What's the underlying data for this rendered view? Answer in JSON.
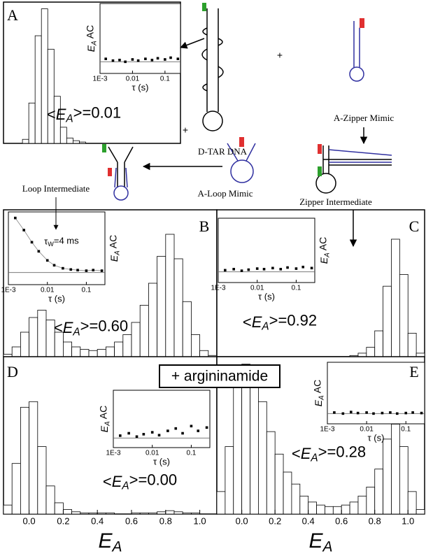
{
  "diagram": {
    "d_tar": "D-TAR DNA",
    "zipper_mimic": "A-Zipper Mimic",
    "loop_mimic": "A-Loop Mimic",
    "loop_intermediate": "Loop Intermediate",
    "zipper_intermediate": "Zipper Intermediate",
    "plus_1": "+",
    "plus_2": "+",
    "argininamide": "+ argininamide"
  },
  "chart_data": [
    {
      "type": "histogram",
      "panel": "A",
      "color": "#ffffff",
      "mean_label": "<EA>=0.01",
      "bins": [
        -0.15,
        -0.1,
        -0.05,
        0,
        0.05,
        0.1,
        0.15,
        0.2,
        0.25,
        0.3,
        0.35,
        0.4,
        0.45,
        0.5,
        0.55,
        0.6,
        0.65,
        0.7,
        0.75,
        0.8,
        0.85,
        0.9,
        0.95,
        1,
        1.05,
        1.1
      ],
      "values": [
        3,
        30,
        80,
        100,
        70,
        35,
        12,
        4,
        2,
        1,
        0,
        0,
        0,
        0,
        0,
        0,
        0,
        0,
        0,
        0,
        0,
        0,
        0,
        0,
        0
      ],
      "xlim": [
        -0.3,
        1.1
      ],
      "ylim": [
        0,
        105
      ],
      "inset": {
        "type": "scatter",
        "xlabel": "τ (s)",
        "ylabel": "EA AC",
        "log_x": true,
        "x": [
          0.0015,
          0.0025,
          0.004,
          0.006,
          0.01,
          0.015,
          0.025,
          0.04,
          0.06,
          0.1,
          0.15,
          0.25
        ],
        "y": [
          0.05,
          0.02,
          0.03,
          0.0,
          0.04,
          0.02,
          0.05,
          0.03,
          0.06,
          0.04,
          0.07,
          0.05
        ],
        "xlim": [
          0.001,
          0.3
        ],
        "ylim": [
          -0.2,
          1
        ],
        "xticks": [
          {
            "value": 0.001,
            "label": "1E-3"
          },
          0.01,
          0.1
        ]
      }
    },
    {
      "type": "histogram",
      "panel": "B",
      "color": "#ffffff",
      "mean_label": "<EA>=0.60",
      "bins": [
        -0.15,
        -0.1,
        -0.05,
        0,
        0.05,
        0.1,
        0.15,
        0.2,
        0.25,
        0.3,
        0.35,
        0.4,
        0.45,
        0.5,
        0.55,
        0.6,
        0.65,
        0.7,
        0.75,
        0.8,
        0.85,
        0.9,
        0.95,
        1,
        1.05,
        1.1
      ],
      "values": [
        2,
        8,
        20,
        32,
        38,
        30,
        20,
        12,
        8,
        6,
        5,
        6,
        8,
        12,
        18,
        28,
        42,
        60,
        82,
        100,
        80,
        45,
        18,
        5,
        1
      ],
      "xlim": [
        -0.15,
        1.1
      ],
      "ylim": [
        0,
        120
      ],
      "inset": {
        "type": "scatter",
        "xlabel": "τ (s)",
        "ylabel": "EA AC",
        "log_x": true,
        "annotation": "τW=4 ms",
        "x": [
          0.0015,
          0.0025,
          0.004,
          0.006,
          0.01,
          0.015,
          0.025,
          0.04,
          0.06,
          0.1,
          0.15,
          0.25
        ],
        "y": [
          0.9,
          0.7,
          0.5,
          0.35,
          0.2,
          0.12,
          0.07,
          0.05,
          0.04,
          0.03,
          0.04,
          0.03
        ],
        "xlim": [
          0.001,
          0.3
        ],
        "ylim": [
          -0.2,
          1
        ],
        "xticks": [
          {
            "value": 0.001,
            "label": "1E-3"
          },
          0.01,
          0.1
        ]
      }
    },
    {
      "type": "histogram",
      "panel": "C",
      "color": "#ffffff",
      "mean_label": "<EA>=0.92",
      "bins": [
        -0.15,
        -0.1,
        -0.05,
        0,
        0.05,
        0.1,
        0.15,
        0.2,
        0.25,
        0.3,
        0.35,
        0.4,
        0.45,
        0.5,
        0.55,
        0.6,
        0.65,
        0.7,
        0.75,
        0.8,
        0.85,
        0.9,
        0.95,
        1,
        1.05,
        1.1
      ],
      "values": [
        0,
        0,
        0,
        0,
        0,
        0,
        0,
        0,
        0,
        0,
        0,
        0,
        0,
        0,
        0,
        0,
        1,
        3,
        8,
        22,
        60,
        100,
        70,
        20,
        3
      ],
      "xlim": [
        -0.15,
        1.1
      ],
      "ylim": [
        0,
        125
      ],
      "inset": {
        "type": "scatter",
        "xlabel": "τ (s)",
        "ylabel": "EA AC",
        "log_x": true,
        "x": [
          0.0015,
          0.0025,
          0.004,
          0.006,
          0.01,
          0.015,
          0.025,
          0.04,
          0.06,
          0.1,
          0.15,
          0.25
        ],
        "y": [
          0.03,
          0.05,
          0.02,
          0.04,
          0.06,
          0.05,
          0.07,
          0.05,
          0.08,
          0.06,
          0.09,
          0.07
        ],
        "xlim": [
          0.001,
          0.3
        ],
        "ylim": [
          -0.2,
          1
        ],
        "xticks": [
          {
            "value": 0.001,
            "label": "1E-3"
          },
          0.01,
          0.1
        ]
      }
    },
    {
      "type": "histogram",
      "panel": "D",
      "color": "#ffffff",
      "mean_label": "<EA>=0.00",
      "xlabel": "EA",
      "bins": [
        -0.15,
        -0.1,
        -0.05,
        0,
        0.05,
        0.1,
        0.15,
        0.2,
        0.25,
        0.3,
        0.35,
        0.4,
        0.45,
        0.5,
        0.55,
        0.6,
        0.65,
        0.7,
        0.75,
        0.8,
        0.85,
        0.9,
        0.95,
        1,
        1.05,
        1.1
      ],
      "values": [
        8,
        45,
        95,
        100,
        60,
        25,
        10,
        4,
        2,
        1,
        1,
        1,
        1,
        0,
        0,
        1,
        1,
        1,
        2,
        3,
        2,
        1,
        1,
        0,
        0
      ],
      "xlim": [
        -0.15,
        1.1
      ],
      "ylim": [
        0,
        140
      ],
      "xticks": [
        {
          "value": 0,
          "label": "0.0"
        },
        0.2,
        0.4,
        0.6,
        0.8,
        {
          "value": 1,
          "label": "1.0"
        }
      ],
      "inset": {
        "type": "scatter",
        "xlabel": "τ (s)",
        "ylabel": "EA AC",
        "log_x": true,
        "x": [
          0.0015,
          0.0025,
          0.004,
          0.006,
          0.01,
          0.015,
          0.025,
          0.04,
          0.06,
          0.1,
          0.15,
          0.25
        ],
        "y": [
          0.05,
          0.1,
          0.03,
          0.08,
          0.12,
          0.06,
          0.15,
          0.2,
          0.1,
          0.25,
          0.15,
          0.22
        ],
        "xlim": [
          0.001,
          0.3
        ],
        "ylim": [
          -0.2,
          1
        ],
        "xticks": [
          {
            "value": 0.001,
            "label": "1E-3"
          },
          0.01,
          0.1
        ]
      }
    },
    {
      "type": "histogram",
      "panel": "E",
      "color": "#ffffff",
      "mean_label": "<EA>=0.28",
      "xlabel": "EA",
      "bins": [
        -0.15,
        -0.1,
        -0.05,
        0,
        0.05,
        0.1,
        0.15,
        0.2,
        0.25,
        0.3,
        0.35,
        0.4,
        0.45,
        0.5,
        0.55,
        0.6,
        0.65,
        0.7,
        0.75,
        0.8,
        0.85,
        0.9,
        0.95,
        1,
        1.05,
        1.1
      ],
      "values": [
        15,
        45,
        85,
        100,
        92,
        75,
        55,
        40,
        28,
        20,
        12,
        8,
        6,
        5,
        5,
        6,
        8,
        12,
        18,
        30,
        50,
        60,
        45,
        15,
        3
      ],
      "xlim": [
        -0.15,
        1.1
      ],
      "ylim": [
        0,
        105
      ],
      "xticks": [
        {
          "value": 0,
          "label": "0.0"
        },
        0.2,
        0.4,
        0.6,
        0.8,
        {
          "value": 1,
          "label": "1.0"
        }
      ],
      "inset": {
        "type": "scatter",
        "xlabel": "τ (s)",
        "ylabel": "EA AC",
        "log_x": true,
        "x": [
          0.0015,
          0.0025,
          0.004,
          0.006,
          0.01,
          0.015,
          0.025,
          0.04,
          0.06,
          0.1,
          0.15,
          0.25
        ],
        "y": [
          0.02,
          0.0,
          0.03,
          0.01,
          0.02,
          0.0,
          0.01,
          0.02,
          0.0,
          0.01,
          0.02,
          0.01
        ],
        "xlim": [
          0.001,
          0.3
        ],
        "ylim": [
          -0.2,
          1
        ],
        "xticks": [
          {
            "value": 0.001,
            "label": "1E-3"
          },
          0.01,
          0.1
        ]
      }
    }
  ]
}
